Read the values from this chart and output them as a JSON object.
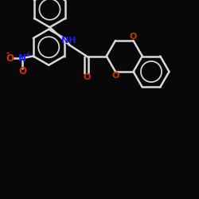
{
  "background_color": "#080808",
  "bond_color": "#d8d8d8",
  "oxygen_color": "#cc3300",
  "nitrogen_color": "#1a1aff",
  "fig_width": 2.5,
  "fig_height": 2.5,
  "dpi": 100,
  "xlim": [
    0,
    10
  ],
  "ylim": [
    0,
    10
  ]
}
